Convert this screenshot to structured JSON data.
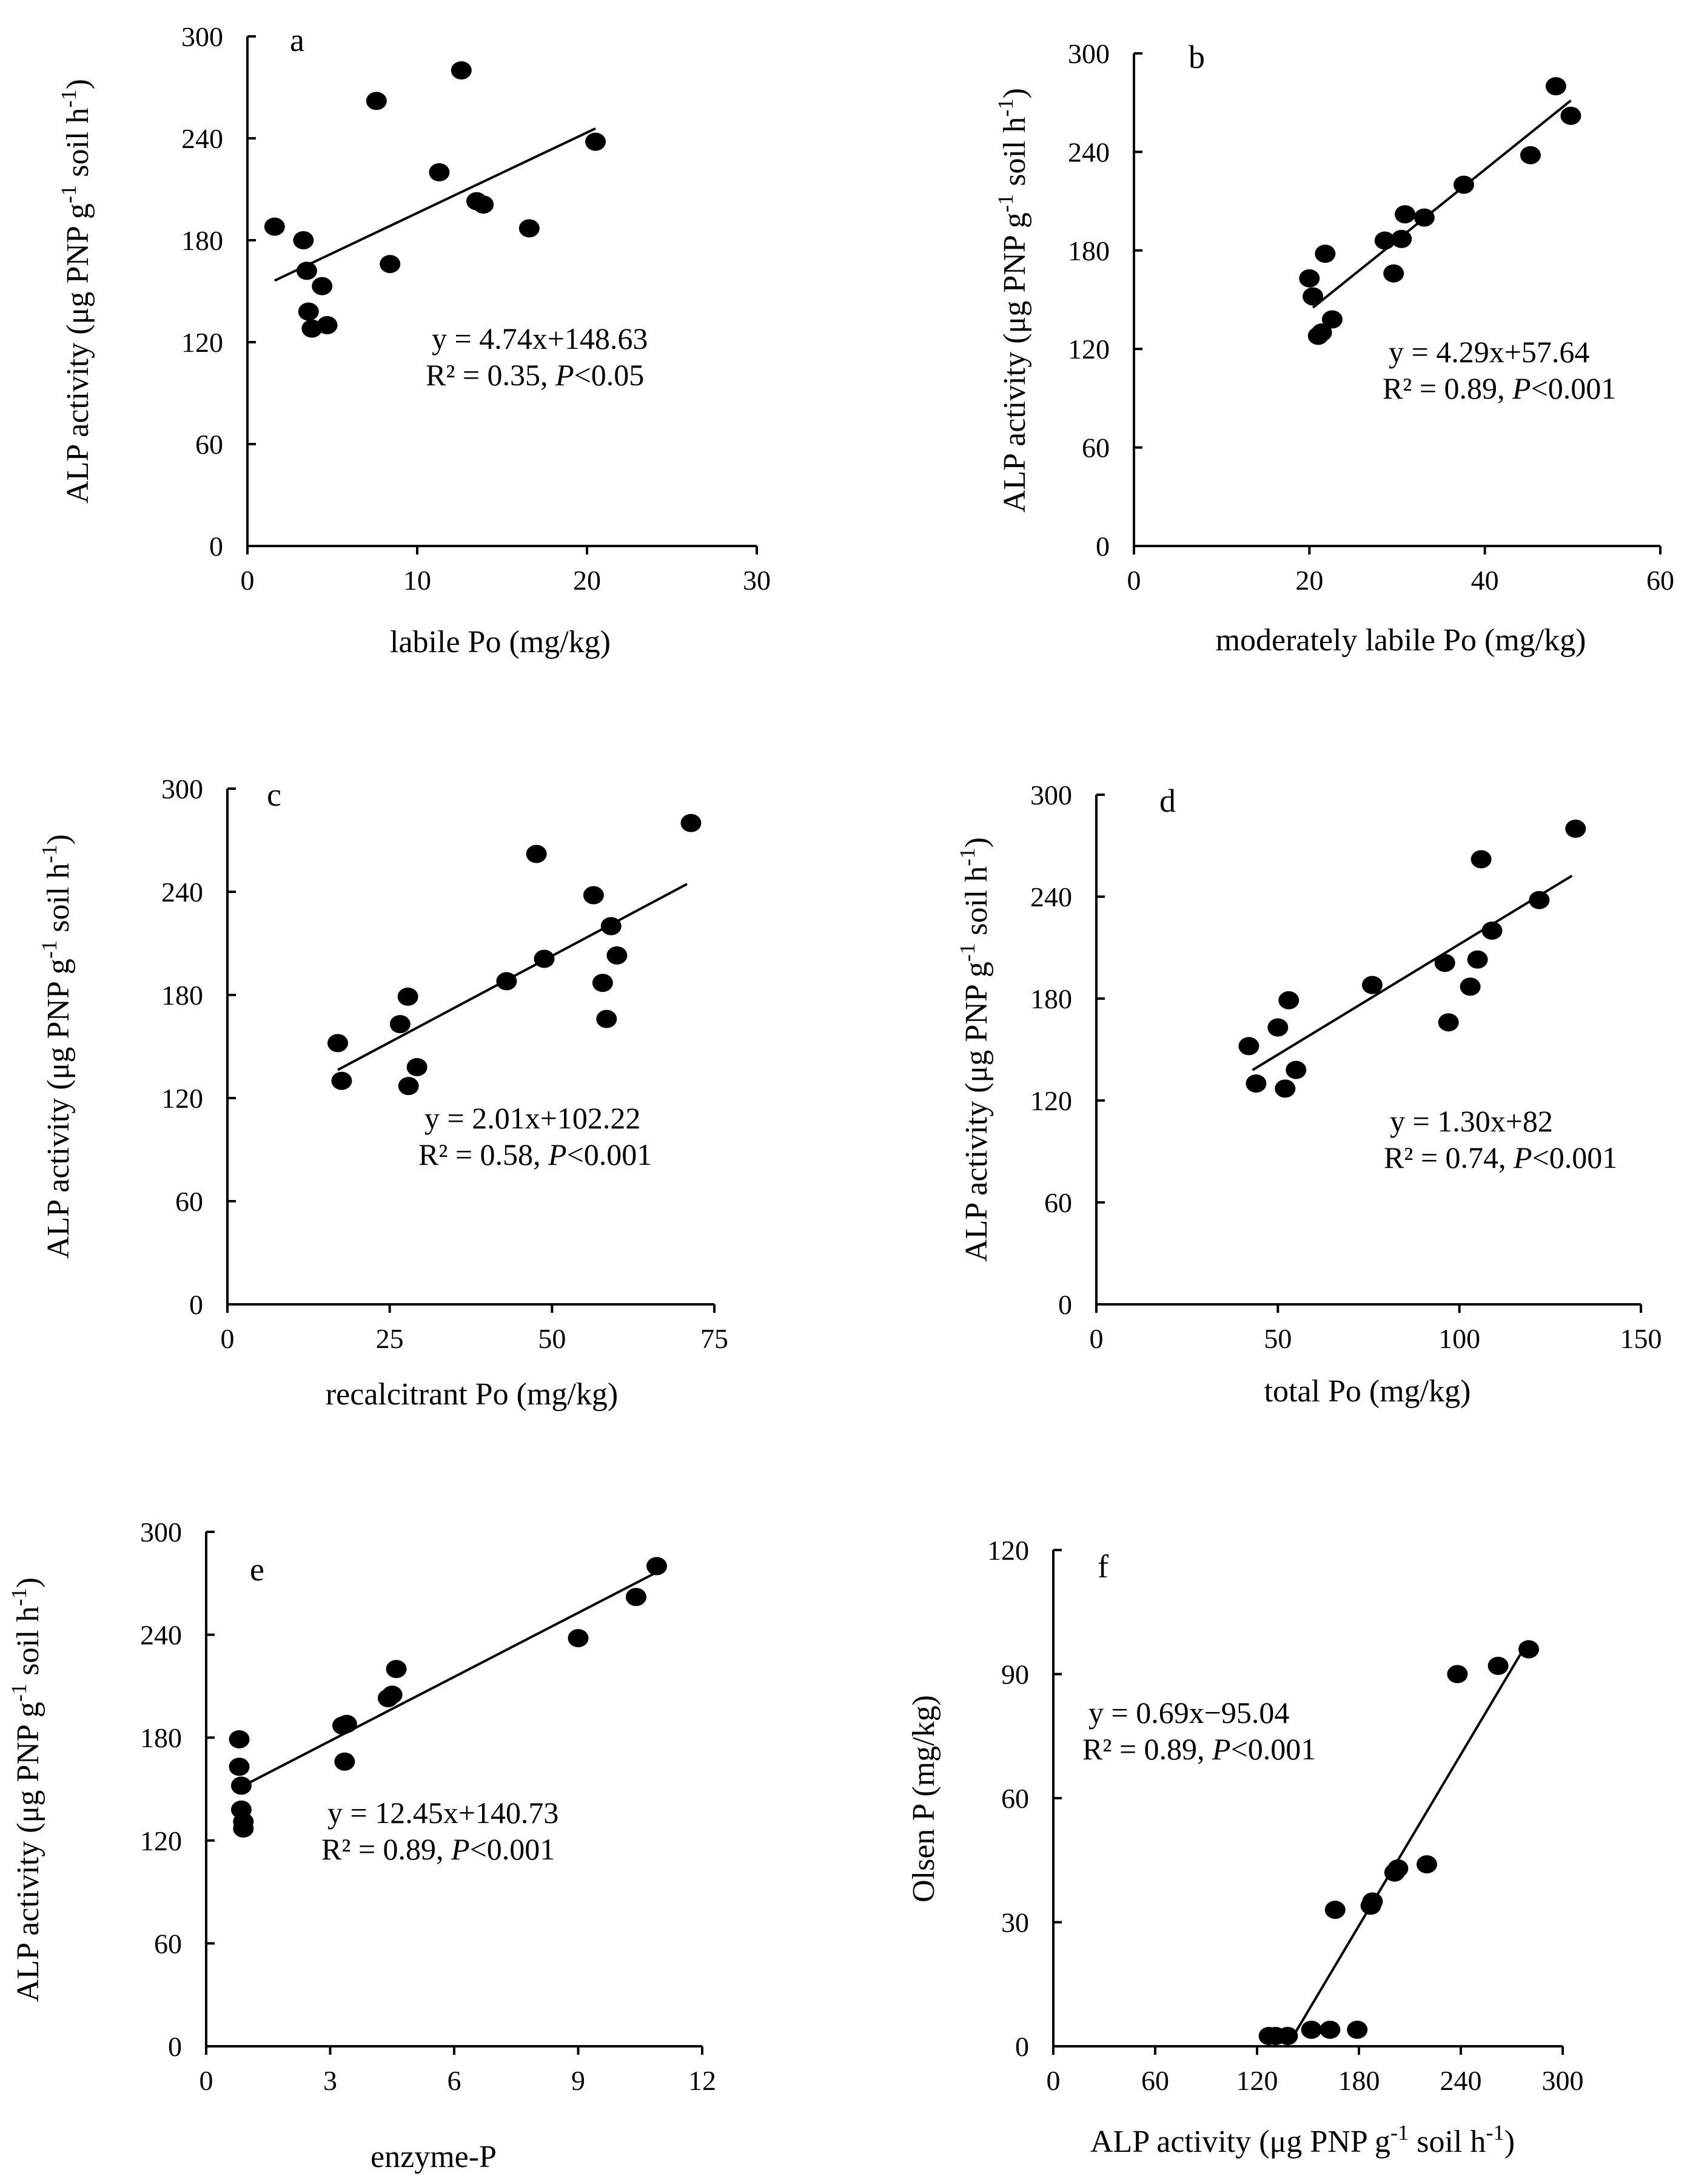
{
  "chart_data": [
    {
      "type": "scatter",
      "panel": "a",
      "xlabel": "labile Po (mg/kg)",
      "ylabel": "ALP activity (μg PNP g⁻¹ soil h⁻¹)",
      "xlim": [
        0,
        30
      ],
      "ylim": [
        0,
        300
      ],
      "xticks": [
        0,
        10,
        20,
        30
      ],
      "yticks": [
        0,
        60,
        120,
        180,
        240,
        300
      ],
      "x": [
        1.6,
        3.3,
        3.5,
        3.6,
        3.8,
        4.4,
        4.7,
        7.6,
        8.4,
        11.3,
        12.6,
        13.5,
        13.9,
        16.6,
        20.5
      ],
      "y": [
        188,
        180,
        162,
        138,
        128,
        153,
        130,
        262,
        166,
        220,
        280,
        203,
        201,
        187,
        238
      ],
      "fit": {
        "slope": 4.74,
        "intercept": 148.63,
        "x_range": [
          1.6,
          20.5
        ]
      },
      "equation": "y = 4.74x+148.63",
      "stats_prefix": "R² = 0.35, ",
      "p_italic": "P",
      "p_rest": "<0.05"
    },
    {
      "type": "scatter",
      "panel": "b",
      "xlabel": "moderately labile Po (mg/kg)",
      "ylabel": "ALP activity (μg PNP g⁻¹ soil h⁻¹)",
      "xlim": [
        0,
        60
      ],
      "ylim": [
        0,
        300
      ],
      "xticks": [
        0,
        20,
        40,
        60
      ],
      "yticks": [
        0,
        60,
        120,
        180,
        240,
        300
      ],
      "x": [
        20.0,
        20.4,
        21.0,
        21.4,
        21.8,
        22.6,
        28.6,
        29.6,
        30.5,
        30.9,
        33.1,
        37.6,
        45.2,
        48.1,
        49.8
      ],
      "y": [
        163,
        152,
        128,
        130,
        178,
        138,
        186,
        166,
        187,
        202,
        200,
        220,
        238,
        280,
        262
      ],
      "fit": {
        "slope": 4.29,
        "intercept": 57.64,
        "x_range": [
          20.4,
          49.8
        ]
      },
      "equation": "y = 4.29x+57.64",
      "stats_prefix": "R² = 0.89, ",
      "p_italic": "P",
      "p_rest": "<0.001"
    },
    {
      "type": "scatter",
      "panel": "c",
      "xlabel": "recalcitrant Po (mg/kg)",
      "ylabel": "ALP activity (μg PNP g⁻¹ soil h⁻¹)",
      "xlim": [
        0,
        75
      ],
      "ylim": [
        0,
        300
      ],
      "xticks": [
        0,
        25,
        50,
        75
      ],
      "yticks": [
        0,
        60,
        120,
        180,
        240,
        300
      ],
      "x": [
        17.0,
        17.6,
        26.6,
        27.8,
        27.9,
        29.2,
        43.0,
        47.6,
        48.8,
        56.4,
        57.8,
        58.4,
        59.1,
        60.0,
        71.4
      ],
      "y": [
        152,
        130,
        163,
        179,
        127,
        138,
        188,
        262,
        201,
        238,
        187,
        166,
        220,
        203,
        280
      ],
      "fit": {
        "slope": 2.01,
        "intercept": 102.22,
        "x_range": [
          17.0,
          70.8
        ]
      },
      "equation": "y = 2.01x+102.22",
      "stats_prefix": "R² = 0.58,   ",
      "p_italic": "P",
      "p_rest": "<0.001"
    },
    {
      "type": "scatter",
      "panel": "d",
      "xlabel": "total Po (mg/kg)",
      "ylabel": "ALP activity (μg PNP g⁻¹ soil h⁻¹)",
      "xlim": [
        0,
        150
      ],
      "ylim": [
        0,
        300
      ],
      "xticks": [
        0,
        50,
        100,
        150
      ],
      "yticks": [
        0,
        60,
        120,
        180,
        240,
        300
      ],
      "x": [
        42.0,
        44.0,
        50.0,
        52.0,
        53.0,
        55.0,
        76.0,
        96.0,
        97.0,
        103.0,
        105.0,
        106.0,
        109.0,
        122.0,
        132.0
      ],
      "y": [
        152,
        130,
        163,
        127,
        179,
        138,
        188,
        201,
        166,
        187,
        203,
        262,
        220,
        238,
        280
      ],
      "fit": {
        "slope": 1.3,
        "intercept": 82,
        "x_range": [
          43.0,
          131.0
        ]
      },
      "equation": "y = 1.30x+82",
      "stats_prefix": "R² = 0.74, ",
      "p_italic": "P",
      "p_rest": "<0.001"
    },
    {
      "type": "scatter",
      "panel": "e",
      "xlabel": "enzyme-P",
      "ylabel": "ALP activity (μg PNP g⁻¹ soil h⁻¹)",
      "xlim": [
        0,
        12
      ],
      "ylim": [
        0,
        300
      ],
      "xticks": [
        0,
        3,
        6,
        9,
        12
      ],
      "yticks": [
        0,
        60,
        120,
        180,
        240,
        300
      ],
      "x": [
        0.8,
        0.8,
        0.85,
        0.85,
        0.9,
        0.9,
        3.3,
        3.4,
        3.35,
        4.4,
        4.5,
        4.6,
        9.0,
        10.4,
        10.9
      ],
      "y": [
        179,
        163,
        152,
        138,
        131,
        127,
        187,
        188,
        166,
        203,
        205,
        220,
        238,
        262,
        280
      ],
      "fit": {
        "slope": 12.45,
        "intercept": 140.73,
        "x_range": [
          0.8,
          10.9
        ]
      },
      "equation": "y = 12.45x+140.73",
      "stats_prefix": "R² = 0.89, ",
      "p_italic": "P",
      "p_rest": "<0.001"
    },
    {
      "type": "scatter",
      "panel": "f",
      "xlabel": "ALP activity (μg PNP g⁻¹ soil h⁻¹)",
      "ylabel": "Olsen P (mg/kg)",
      "xlim": [
        0,
        300
      ],
      "ylim": [
        0,
        120
      ],
      "xticks": [
        0,
        60,
        120,
        180,
        240,
        300
      ],
      "yticks": [
        0,
        30,
        60,
        90,
        120
      ],
      "x": [
        127,
        131,
        138,
        152,
        163,
        166,
        179,
        187,
        188,
        201,
        203,
        220,
        238,
        262,
        280
      ],
      "y": [
        2.5,
        2.5,
        2.5,
        4,
        4,
        33,
        4,
        34,
        35,
        42,
        43,
        44,
        90,
        92,
        96
      ],
      "fit": {
        "slope": 0.69,
        "intercept": -95.04,
        "x_range": [
          140,
          280
        ]
      },
      "equation": "y = 0.69x−95.04",
      "stats_prefix": "R² = 0.89, ",
      "p_italic": "P",
      "p_rest": "<0.001"
    }
  ]
}
